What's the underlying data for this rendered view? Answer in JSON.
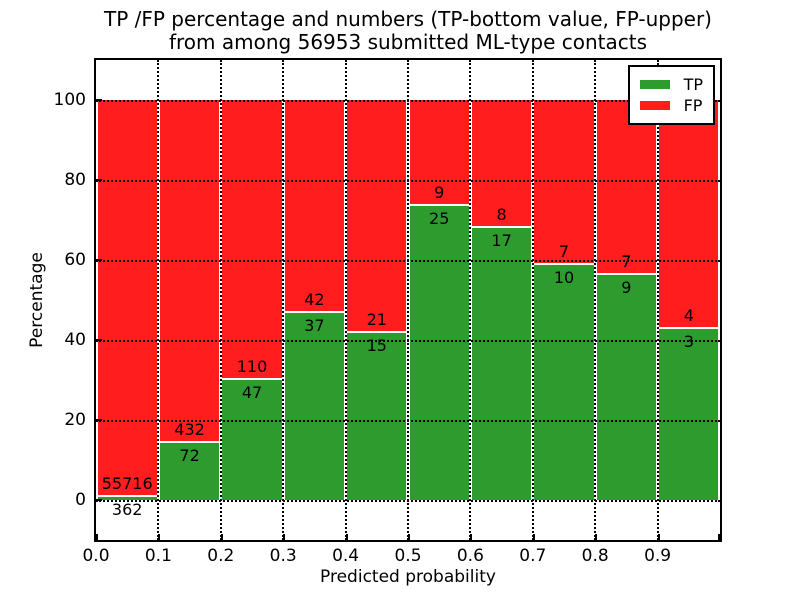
{
  "chart_data": {
    "type": "bar",
    "stacked": true,
    "normalized_to_percent": true,
    "title_line1": "TP /FP percentage and numbers (TP-bottom value, FP-upper)",
    "title_line2": "from among 56953 submitted ML-type contacts",
    "xlabel": "Predicted probability",
    "ylabel": "Percentage",
    "total_contacts": 56953,
    "bin_edges": [
      0.0,
      0.1,
      0.2,
      0.3,
      0.4,
      0.5,
      0.6,
      0.7,
      0.8,
      0.9,
      1.0
    ],
    "categories": [
      "0.0-0.1",
      "0.1-0.2",
      "0.2-0.3",
      "0.3-0.4",
      "0.4-0.5",
      "0.5-0.6",
      "0.6-0.7",
      "0.7-0.8",
      "0.8-0.9",
      "0.9-1.0"
    ],
    "series": [
      {
        "name": "TP",
        "color": "#2E9B2E",
        "values": [
          362,
          72,
          47,
          37,
          15,
          25,
          17,
          10,
          9,
          3
        ]
      },
      {
        "name": "FP",
        "color": "#FF1D1D",
        "values": [
          55716,
          432,
          110,
          42,
          21,
          9,
          8,
          7,
          7,
          4
        ]
      }
    ],
    "tp_percent": [
      0.65,
      14.29,
      29.94,
      46.84,
      41.67,
      73.53,
      68.0,
      58.82,
      56.25,
      42.86
    ],
    "bar_total_percent": 100,
    "x_ticks": [
      "0.0",
      "0.1",
      "0.2",
      "0.3",
      "0.4",
      "0.5",
      "0.6",
      "0.7",
      "0.8",
      "0.9"
    ],
    "y_ticks": [
      0,
      20,
      40,
      60,
      80,
      100
    ],
    "xlim": [
      0.0,
      1.0
    ],
    "ylim": [
      -10,
      110
    ],
    "grid": "dotted",
    "legend": {
      "position": "upper right",
      "entries": [
        {
          "label": "TP",
          "color": "#2E9B2E"
        },
        {
          "label": "FP",
          "color": "#FF1D1D"
        }
      ]
    }
  }
}
